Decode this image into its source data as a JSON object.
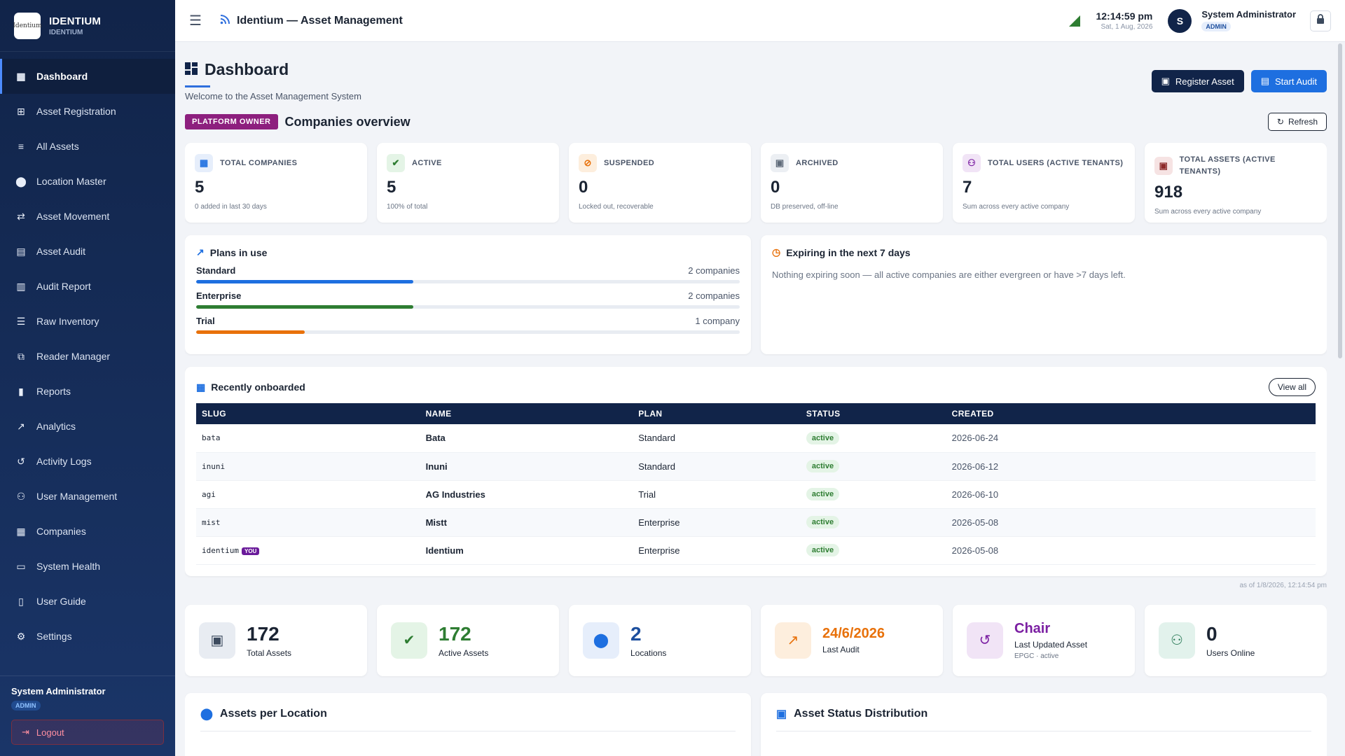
{
  "brand": {
    "title": "IDENTIUM",
    "subtitle": "IDENTIUM",
    "logo_text": "Identium"
  },
  "sidebar": {
    "items": [
      {
        "label": "Dashboard",
        "icon": "dashboard-icon",
        "active": true
      },
      {
        "label": "Asset Registration",
        "icon": "add-box-icon"
      },
      {
        "label": "All Assets",
        "icon": "list-icon"
      },
      {
        "label": "Location Master",
        "icon": "location-pin-icon"
      },
      {
        "label": "Asset Movement",
        "icon": "swap-arrows-icon"
      },
      {
        "label": "Asset Audit",
        "icon": "clipboard-icon"
      },
      {
        "label": "Audit Report",
        "icon": "document-icon"
      },
      {
        "label": "Raw Inventory",
        "icon": "stack-icon"
      },
      {
        "label": "Reader Manager",
        "icon": "reader-icon"
      },
      {
        "label": "Reports",
        "icon": "bar-chart-icon"
      },
      {
        "label": "Analytics",
        "icon": "trend-icon"
      },
      {
        "label": "Activity Logs",
        "icon": "history-icon"
      },
      {
        "label": "User Management",
        "icon": "users-icon"
      },
      {
        "label": "Companies",
        "icon": "building-icon"
      },
      {
        "label": "System Health",
        "icon": "monitor-icon"
      },
      {
        "label": "User Guide",
        "icon": "book-icon"
      },
      {
        "label": "Settings",
        "icon": "gear-icon"
      }
    ],
    "footer": {
      "user": "System Administrator",
      "role": "ADMIN",
      "logout": "Logout"
    }
  },
  "topbar": {
    "title": "Identium — Asset Management",
    "time": "12:14:59 pm",
    "date": "Sat, 1 Aug, 2026",
    "avatar_initial": "S",
    "user": "System Administrator",
    "role": "ADMIN"
  },
  "page": {
    "title": "Dashboard",
    "subtitle": "Welcome to the Asset Management System",
    "register_btn": "Register Asset",
    "audit_btn": "Start Audit"
  },
  "companies": {
    "badge": "PLATFORM OWNER",
    "title": "Companies overview",
    "refresh": "Refresh",
    "cards": [
      {
        "label": "TOTAL COMPANIES",
        "value": "5",
        "sub": "0 added in last 30 days",
        "icon": "building-icon",
        "color": "#1e6fe0",
        "bg": "#e6eefb"
      },
      {
        "label": "ACTIVE",
        "value": "5",
        "sub": "100% of total",
        "icon": "check-circle-icon",
        "color": "#2e7d32",
        "bg": "#e4f4e6"
      },
      {
        "label": "SUSPENDED",
        "value": "0",
        "sub": "Locked out, recoverable",
        "icon": "block-icon",
        "color": "#e8710a",
        "bg": "#fdeedd"
      },
      {
        "label": "ARCHIVED",
        "value": "0",
        "sub": "DB preserved, off-line",
        "icon": "archive-icon",
        "color": "#5f6b7a",
        "bg": "#eceff3"
      },
      {
        "label": "TOTAL USERS (ACTIVE TENANTS)",
        "value": "7",
        "sub": "Sum across every active company",
        "icon": "users-icon",
        "color": "#7b1fa2",
        "bg": "#f1e4f6"
      },
      {
        "label": "TOTAL ASSETS (ACTIVE TENANTS)",
        "value": "918",
        "sub": "Sum across every active company",
        "icon": "inventory-icon",
        "color": "#8d2a2a",
        "bg": "#f6e3e3"
      }
    ]
  },
  "plans": {
    "title": "Plans in use",
    "items": [
      {
        "name": "Standard",
        "count": "2 companies",
        "fraction": 0.4,
        "color": "#1e6fe0"
      },
      {
        "name": "Enterprise",
        "count": "2 companies",
        "fraction": 0.4,
        "color": "#2e7d32"
      },
      {
        "name": "Trial",
        "count": "1 company",
        "fraction": 0.2,
        "color": "#e8710a"
      }
    ]
  },
  "expiring": {
    "title": "Expiring in the next 7 days",
    "text": "Nothing expiring soon — all active companies are either evergreen or have >7 days left."
  },
  "recent": {
    "title": "Recently onboarded",
    "view_all": "View all",
    "columns": [
      "SLUG",
      "NAME",
      "PLAN",
      "STATUS",
      "CREATED"
    ],
    "rows": [
      {
        "slug": "bata",
        "name": "Bata",
        "plan": "Standard",
        "status": "active",
        "created": "2026-06-24",
        "you": ""
      },
      {
        "slug": "inuni",
        "name": "Inuni",
        "plan": "Standard",
        "status": "active",
        "created": "2026-06-12",
        "you": ""
      },
      {
        "slug": "agi",
        "name": "AG Industries",
        "plan": "Trial",
        "status": "active",
        "created": "2026-06-10",
        "you": ""
      },
      {
        "slug": "mist",
        "name": "Mistt",
        "plan": "Enterprise",
        "status": "active",
        "created": "2026-05-08",
        "you": ""
      },
      {
        "slug": "identium",
        "name": "Identium",
        "plan": "Enterprise",
        "status": "active",
        "created": "2026-05-08",
        "you": "YOU"
      }
    ],
    "as_of": "as of 1/8/2026, 12:14:54 pm"
  },
  "stats": [
    {
      "value": "172",
      "label": "Total Assets",
      "sub": "",
      "icon": "inventory-icon",
      "iconColor": "#3c4a5e",
      "bg": "#e8ecf2",
      "valueColor": "#1b2433"
    },
    {
      "value": "172",
      "label": "Active Assets",
      "sub": "",
      "icon": "check-circle-icon",
      "iconColor": "#2e7d32",
      "bg": "#e4f4e6",
      "valueColor": "#2e7d32"
    },
    {
      "value": "2",
      "label": "Locations",
      "sub": "",
      "icon": "location-pin-icon",
      "iconColor": "#1e6fe0",
      "bg": "#e6eefb",
      "valueColor": "#1d4f9e"
    },
    {
      "value": "24/6/2026",
      "label": "Last Audit",
      "sub": "",
      "icon": "trend-icon",
      "iconColor": "#e8710a",
      "bg": "#fdeedd",
      "valueColor": "#e8710a"
    },
    {
      "value": "Chair",
      "label": "Last Updated Asset",
      "sub": "EPGC · active",
      "icon": "history-icon",
      "iconColor": "#7b1fa2",
      "bg": "#f1e4f6",
      "valueColor": "#7b1fa2"
    },
    {
      "value": "0",
      "label": "Users Online",
      "sub": "",
      "icon": "users-icon",
      "iconColor": "#2e7d5a",
      "bg": "#e2f2ec",
      "valueColor": "#1b2433"
    }
  ],
  "bottom_panels": [
    {
      "title": "Assets per Location",
      "icon": "location-pin-icon",
      "color": "#1e6fe0"
    },
    {
      "title": "Asset Status Distribution",
      "icon": "inventory-icon",
      "color": "#1e6fe0"
    }
  ]
}
